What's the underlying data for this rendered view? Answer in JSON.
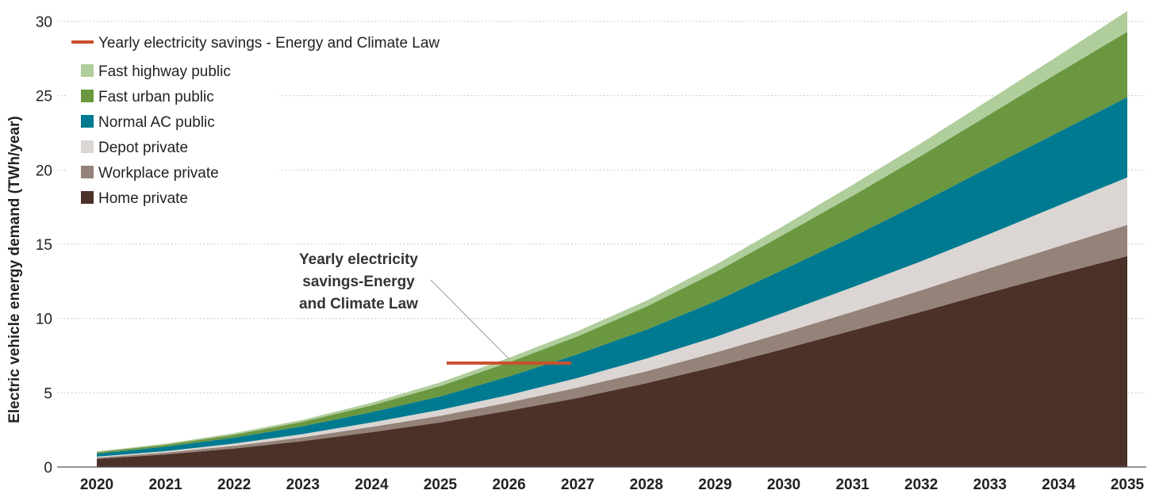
{
  "chart_data": {
    "type": "area",
    "stacked": true,
    "ylabel": "Electric vehicle energy demand (TWh/year)",
    "xlabel": "",
    "ylim": [
      0,
      30
    ],
    "yticks": [
      0,
      5,
      10,
      15,
      20,
      25,
      30
    ],
    "grid": "horizontal dotted",
    "legend_placement": "top-left",
    "categories": [
      "2020",
      "2021",
      "2022",
      "2023",
      "2024",
      "2025",
      "2026",
      "2027",
      "2028",
      "2029",
      "2030",
      "2031",
      "2032",
      "2033",
      "2034",
      "2035"
    ],
    "series": [
      {
        "name": "Home private",
        "color": "#4c3128",
        "values": [
          0.55,
          0.85,
          1.25,
          1.75,
          2.35,
          3.0,
          3.8,
          4.65,
          5.65,
          6.75,
          7.95,
          9.2,
          10.45,
          11.75,
          13.0,
          14.2
        ]
      },
      {
        "name": "Workplace private",
        "color": "#958279",
        "values": [
          0.08,
          0.12,
          0.18,
          0.25,
          0.35,
          0.45,
          0.55,
          0.7,
          0.8,
          0.95,
          1.1,
          1.25,
          1.45,
          1.65,
          1.85,
          2.1
        ]
      },
      {
        "name": "Depot private",
        "color": "#dbd6d3",
        "values": [
          0.07,
          0.1,
          0.15,
          0.22,
          0.3,
          0.4,
          0.5,
          0.65,
          0.85,
          1.05,
          1.35,
          1.65,
          1.95,
          2.3,
          2.75,
          3.2
        ]
      },
      {
        "name": "Normal AC public",
        "color": "#007a91",
        "values": [
          0.2,
          0.3,
          0.4,
          0.53,
          0.7,
          0.9,
          1.25,
          1.6,
          1.95,
          2.4,
          2.9,
          3.4,
          3.95,
          4.5,
          4.95,
          5.4
        ]
      },
      {
        "name": "Fast urban public",
        "color": "#6a9740",
        "values": [
          0.1,
          0.13,
          0.2,
          0.3,
          0.45,
          0.7,
          0.95,
          1.2,
          1.55,
          1.95,
          2.35,
          2.75,
          3.15,
          3.55,
          4.0,
          4.4
        ]
      },
      {
        "name": "Fast highway public",
        "color": "#b0cd9c",
        "values": [
          0.05,
          0.07,
          0.1,
          0.13,
          0.18,
          0.25,
          0.3,
          0.35,
          0.4,
          0.5,
          0.6,
          0.75,
          0.85,
          1.0,
          1.15,
          1.4
        ]
      }
    ],
    "line_series": {
      "name": "Yearly electricity savings - Energy and Climate Law",
      "color": "#c9502e",
      "x": [
        "2025",
        "2027"
      ],
      "y": [
        7,
        7
      ]
    },
    "annotation": {
      "lines": [
        "Yearly electricity",
        "savings-Energy",
        "and Climate Law"
      ]
    }
  }
}
